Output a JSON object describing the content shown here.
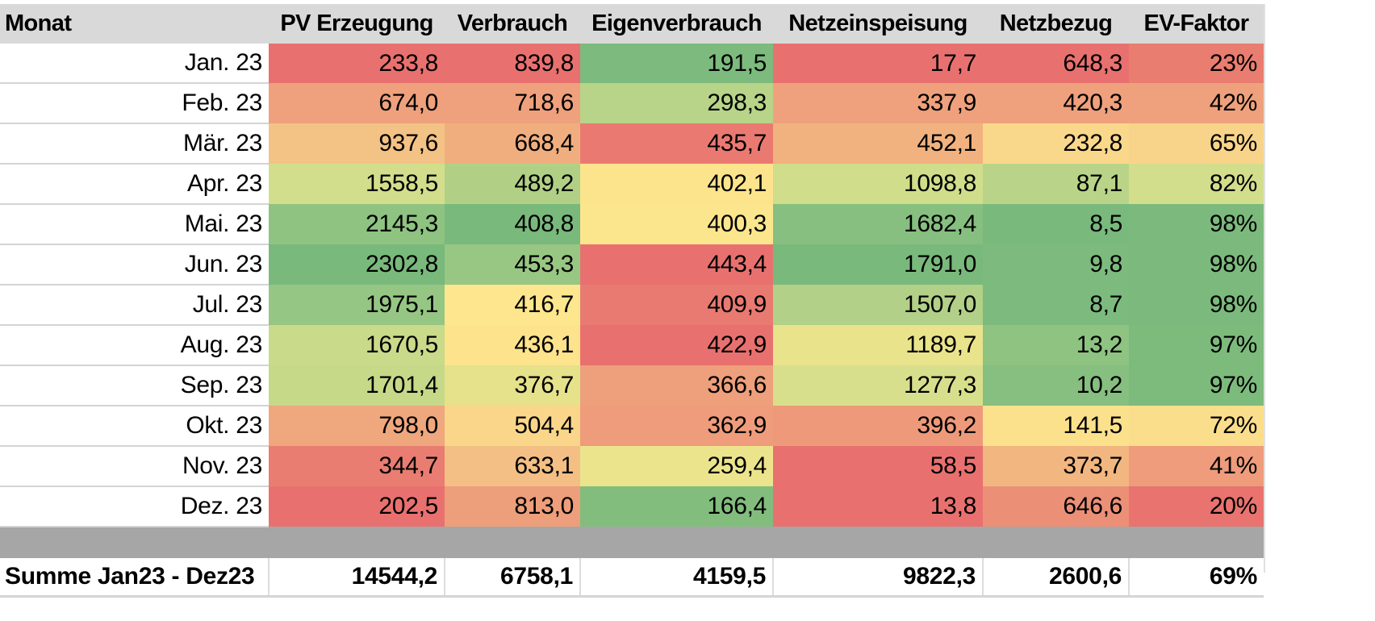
{
  "table": {
    "headers": [
      "Monat",
      "PV Erzeugung",
      "Verbrauch",
      "Eigenverbrauch",
      "Netzeinspeisung",
      "Netzbezug",
      "EV-Faktor"
    ],
    "rows": [
      {
        "month": "Jan. 23",
        "cells": [
          "233,8",
          "839,8",
          "191,5",
          "17,7",
          "648,3",
          "23%"
        ],
        "colors": [
          "#e8716f",
          "#e8716f",
          "#7cbb7d",
          "#e8716f",
          "#e8716f",
          "#e97d70"
        ]
      },
      {
        "month": "Feb. 23",
        "cells": [
          "674,0",
          "718,6",
          "298,3",
          "337,9",
          "420,3",
          "42%"
        ],
        "colors": [
          "#eea17c",
          "#eea17c",
          "#b7d488",
          "#eea17c",
          "#eea17c",
          "#eea17c"
        ]
      },
      {
        "month": "Mär. 23",
        "cells": [
          "937,6",
          "668,4",
          "435,7",
          "452,1",
          "232,8",
          "65%"
        ],
        "colors": [
          "#f3c285",
          "#f0ae7f",
          "#ea7a71",
          "#f1b27f",
          "#fad88b",
          "#f8d48a"
        ]
      },
      {
        "month": "Apr. 23",
        "cells": [
          "1558,5",
          "489,2",
          "402,1",
          "1098,8",
          "87,1",
          "82%"
        ],
        "colors": [
          "#d3de8c",
          "#b1d086",
          "#fce48d",
          "#d0dd8b",
          "#b9d488",
          "#d3de8c"
        ]
      },
      {
        "month": "Mai. 23",
        "cells": [
          "2145,3",
          "408,8",
          "400,3",
          "1682,4",
          "8,5",
          "98%"
        ],
        "colors": [
          "#8ec381",
          "#7ab97c",
          "#fce68d",
          "#86bf7f",
          "#79b97c",
          "#7bba7c"
        ]
      },
      {
        "month": "Jun. 23",
        "cells": [
          "2302,8",
          "453,3",
          "443,4",
          "1791,0",
          "9,8",
          "98%"
        ],
        "colors": [
          "#79b97c",
          "#98c783",
          "#e8716f",
          "#79b97c",
          "#7cbb7d",
          "#7bba7c"
        ]
      },
      {
        "month": "Jul. 23",
        "cells": [
          "1975,1",
          "416,7",
          "409,9",
          "1507,0",
          "8,7",
          "98%"
        ],
        "colors": [
          "#96c683",
          "#fde68d",
          "#e97a71",
          "#b2d087",
          "#7cbb7d",
          "#7bba7c"
        ]
      },
      {
        "month": "Aug. 23",
        "cells": [
          "1670,5",
          "436,1",
          "422,9",
          "1189,7",
          "13,2",
          "97%"
        ],
        "colors": [
          "#c9da8a",
          "#fce38c",
          "#e8716f",
          "#e9e38b",
          "#8ec381",
          "#7dbb7d"
        ]
      },
      {
        "month": "Sep. 23",
        "cells": [
          "1701,4",
          "376,7",
          "366,6",
          "1277,3",
          "10,2",
          "97%"
        ],
        "colors": [
          "#c6d989",
          "#e6e18b",
          "#ee9f7b",
          "#d8df8c",
          "#86bf7f",
          "#7dbb7d"
        ]
      },
      {
        "month": "Okt. 23",
        "cells": [
          "798,0",
          "504,4",
          "362,9",
          "396,2",
          "141,5",
          "72%"
        ],
        "colors": [
          "#efa77d",
          "#f9d68a",
          "#ee9c7b",
          "#ee9a7a",
          "#fce18c",
          "#fbde8b"
        ]
      },
      {
        "month": "Nov. 23",
        "cells": [
          "344,7",
          "633,1",
          "259,4",
          "58,5",
          "373,7",
          "41%"
        ],
        "colors": [
          "#e97d71",
          "#f3bf84",
          "#ece48c",
          "#e8716f",
          "#f2b680",
          "#ee9c7b"
        ]
      },
      {
        "month": "Dez. 23",
        "cells": [
          "202,5",
          "813,0",
          "166,4",
          "13,8",
          "646,6",
          "20%"
        ],
        "colors": [
          "#e8716f",
          "#ed9e7a",
          "#82bd7e",
          "#e8716f",
          "#ec8f77",
          "#e8736f"
        ]
      }
    ],
    "summary": {
      "label": "Summe Jan23 - Dez23",
      "cells": [
        "14544,2",
        "6758,1",
        "4159,5",
        "9822,3",
        "2600,6",
        "69%"
      ]
    }
  },
  "colors": {
    "header_bg": "#d9d9d9",
    "separator_bg": "#a6a6a6",
    "scale_low": "#e8716f",
    "scale_mid": "#fce68d",
    "scale_high": "#79b97c"
  }
}
